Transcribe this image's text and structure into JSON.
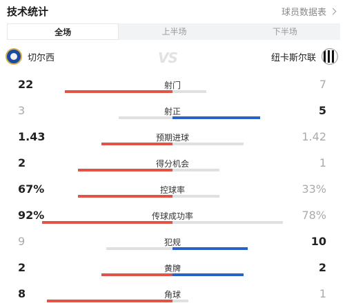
{
  "header": {
    "title": "技术统计",
    "link_label": "球员数据表"
  },
  "tabs": [
    {
      "label": "全场",
      "active": true
    },
    {
      "label": "上半场",
      "active": false
    },
    {
      "label": "下半场",
      "active": false
    }
  ],
  "teams": {
    "home": {
      "name": "切尔西",
      "bar_color": "#e05346"
    },
    "away": {
      "name": "纽卡斯尔联",
      "bar_color": "#2a61c9"
    },
    "vs_label": "VS"
  },
  "stats": [
    {
      "label": "射门",
      "home": "22",
      "away": "7",
      "home_fraction": 0.76,
      "away_fraction": 0.24,
      "leader": "home"
    },
    {
      "label": "射正",
      "home": "3",
      "away": "5",
      "home_fraction": 0.38,
      "away_fraction": 0.62,
      "leader": "away"
    },
    {
      "label": "预期进球",
      "home": "1.43",
      "away": "1.42",
      "home_fraction": 0.5,
      "away_fraction": 0.5,
      "leader": "home"
    },
    {
      "label": "得分机会",
      "home": "2",
      "away": "1",
      "home_fraction": 0.67,
      "away_fraction": 0.33,
      "leader": "home"
    },
    {
      "label": "控球率",
      "home": "67%",
      "away": "33%",
      "home_fraction": 0.67,
      "away_fraction": 0.33,
      "leader": "home"
    },
    {
      "label": "传球成功率",
      "home": "92%",
      "away": "78%",
      "home_fraction": 0.92,
      "away_fraction": 0.78,
      "leader": "home"
    },
    {
      "label": "犯规",
      "home": "9",
      "away": "10",
      "home_fraction": 0.47,
      "away_fraction": 0.53,
      "leader": "away"
    },
    {
      "label": "黄牌",
      "home": "2",
      "away": "2",
      "home_fraction": 0.5,
      "away_fraction": 0.5,
      "leader": "both"
    },
    {
      "label": "角球",
      "home": "8",
      "away": "1",
      "home_fraction": 0.89,
      "away_fraction": 0.11,
      "leader": "home"
    }
  ]
}
